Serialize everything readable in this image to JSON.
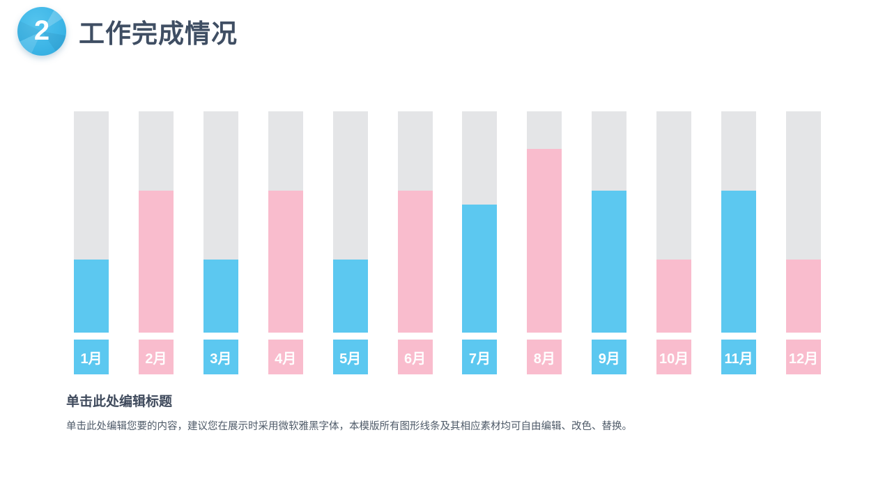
{
  "header": {
    "number": "2",
    "title": "工作完成情况"
  },
  "chart_data": {
    "type": "bar",
    "title": "",
    "categories": [
      "1月",
      "2月",
      "3月",
      "4月",
      "5月",
      "6月",
      "7月",
      "8月",
      "9月",
      "10月",
      "11月",
      "12月"
    ],
    "values": [
      33,
      64,
      33,
      64,
      33,
      64,
      58,
      83,
      64,
      33,
      64,
      33
    ],
    "ylim": [
      0,
      100
    ],
    "unit": "percent",
    "grid": false,
    "legend": "none",
    "bar_colors": [
      "#5cc8f0",
      "#f9bccd",
      "#5cc8f0",
      "#f9bccd",
      "#5cc8f0",
      "#f9bccd",
      "#5cc8f0",
      "#f9bccd",
      "#5cc8f0",
      "#f9bccd",
      "#5cc8f0",
      "#f9bccd"
    ],
    "track_color": "#e4e5e7",
    "note": "stacked look: colored completion fill over full-height gray track, month label box matches fill color"
  },
  "footer": {
    "title": "单击此处编辑标题",
    "body": "单击此处编辑您要的内容，建议您在展示时采用微软雅黑字体，本模版所有图形线条及其相应素材均可自由编辑、改色、替换。"
  },
  "colors": {
    "badge_blue": "#3eb6e7",
    "bar_blue": "#5cc8f0",
    "bar_pink": "#f9bccd",
    "track_gray": "#e4e5e7",
    "heading_text": "#3f4e63",
    "caption_title_text": "#3f4a5c",
    "caption_body_text": "#4e5a68",
    "background": "#ffffff"
  }
}
